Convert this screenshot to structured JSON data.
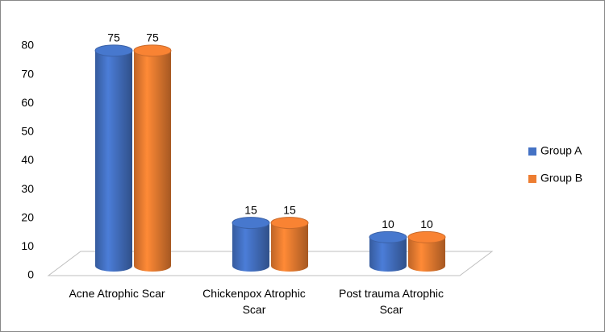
{
  "chart_data": {
    "type": "bar3d",
    "categories": [
      "Acne Atrophic Scar",
      "Chickenpox Atrophic Scar",
      "Post trauma Atrophic Scar"
    ],
    "series": [
      {
        "name": "Group A",
        "color": "#4472c4",
        "values": [
          75,
          15,
          10
        ]
      },
      {
        "name": "Group B",
        "color": "#ed7d31",
        "values": [
          75,
          15,
          10
        ]
      }
    ],
    "ylim": [
      0,
      80
    ],
    "yticks": [
      0,
      10,
      20,
      30,
      40,
      50,
      60,
      70,
      80
    ],
    "grid": false,
    "legend": "right"
  }
}
